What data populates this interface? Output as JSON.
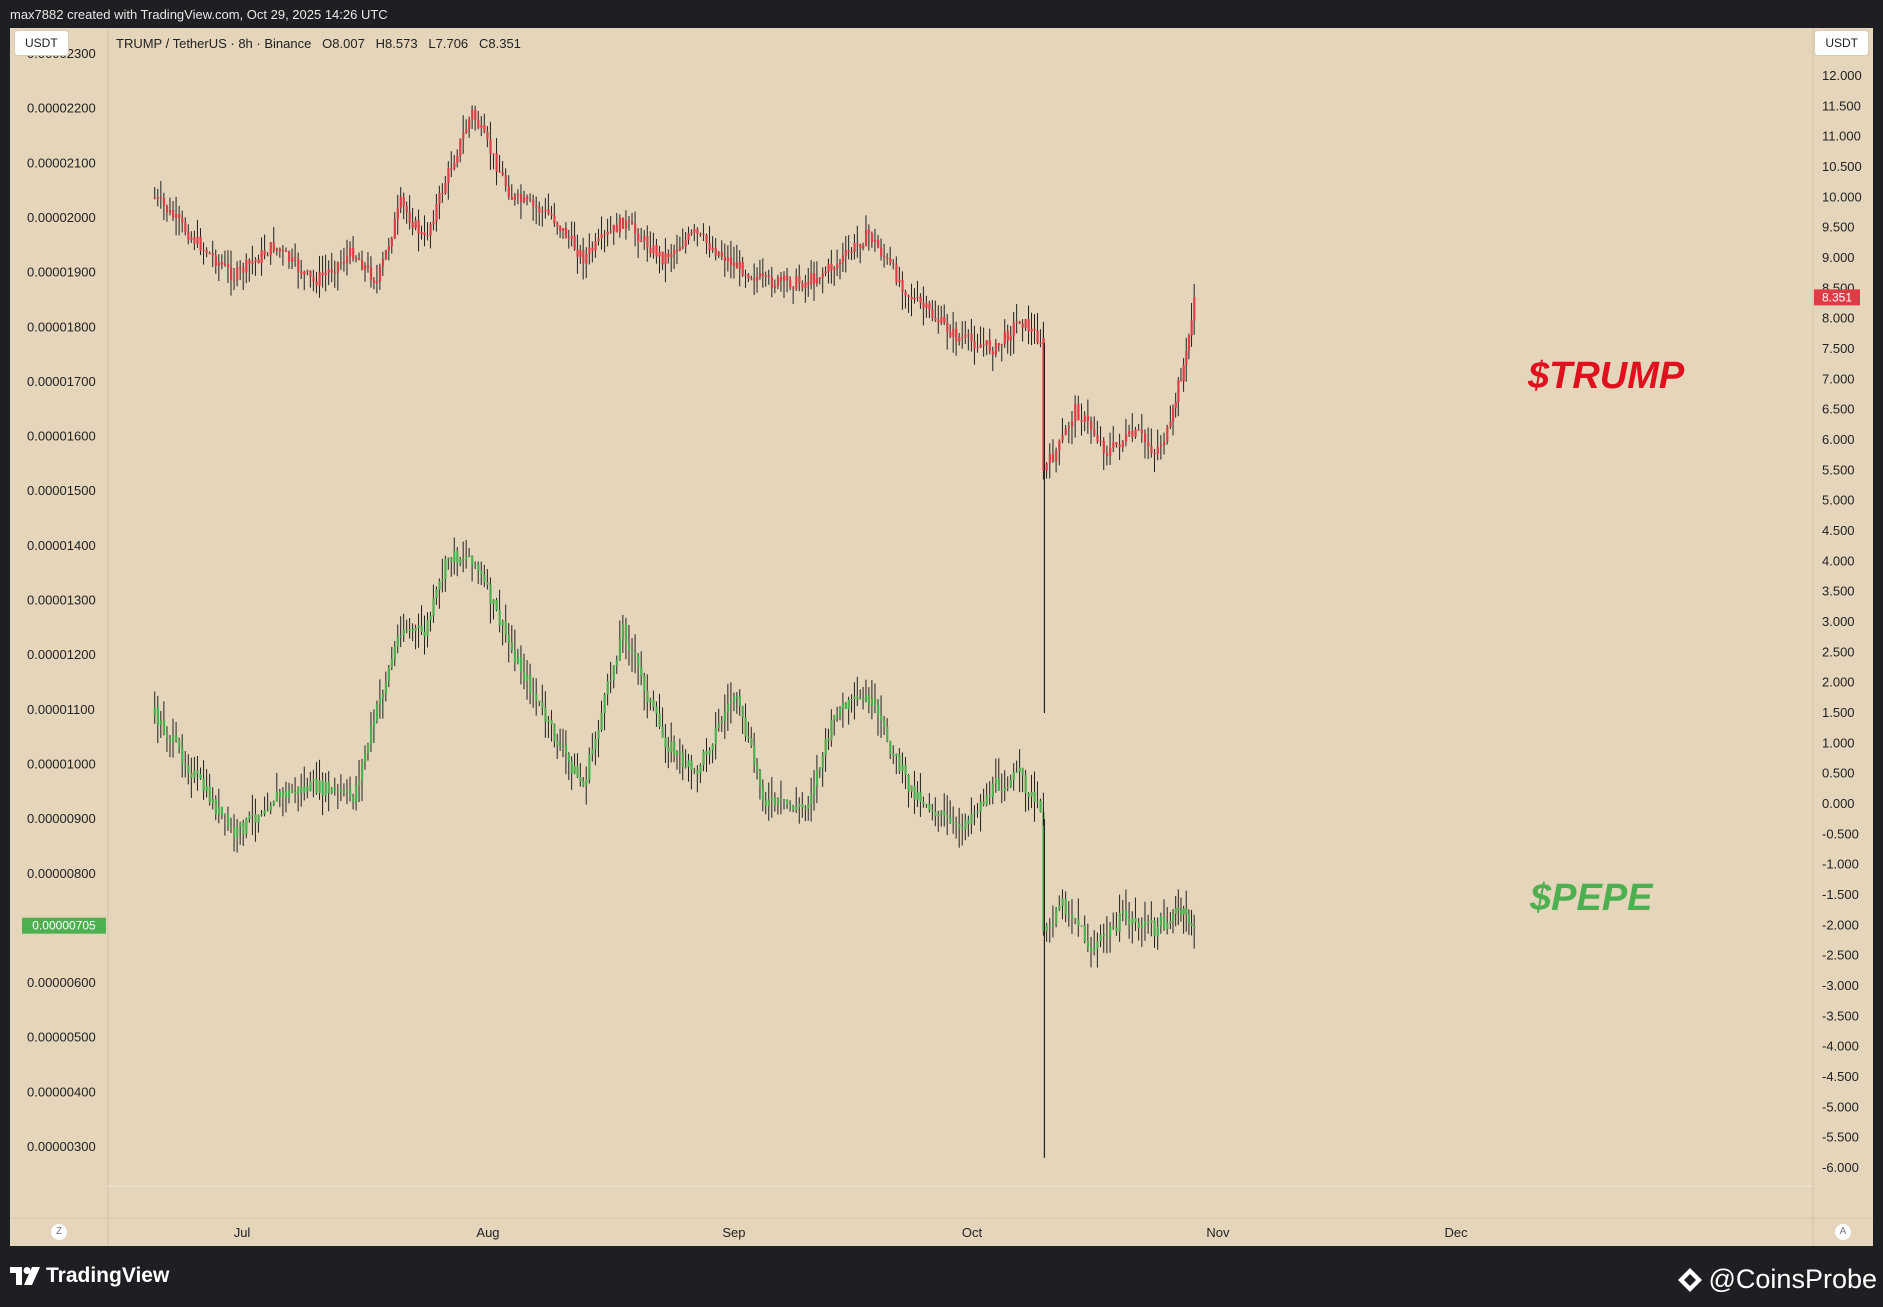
{
  "header": {
    "attribution": "max7882 created with TradingView.com, Oct 29, 2025 14:26 UTC"
  },
  "toolbar": {
    "left_unit": "USDT",
    "right_unit": "USDT",
    "legend": "TRUMP / TetherUS · 8h · Binance   O8.007   H8.573   L7.706   C8.351",
    "z_button": "Z",
    "a_button": "A"
  },
  "footer": {
    "brand": "TradingView",
    "watermark": "@CoinsProbe"
  },
  "colors": {
    "background": "#e4d5bb",
    "trump": "#e03c47",
    "pepe": "#4caf50",
    "wick": "#222222"
  },
  "chart_data": {
    "type": "line",
    "x_ticks": [
      "Jul",
      "Aug",
      "Sep",
      "Oct",
      "Nov",
      "Dec"
    ],
    "right_axis": {
      "ticks": [
        "12.000",
        "11.500",
        "11.000",
        "10.500",
        "10.000",
        "9.500",
        "9.000",
        "8.500",
        "8.000",
        "7.500",
        "7.000",
        "6.500",
        "6.000",
        "5.500",
        "5.000",
        "4.500",
        "4.000",
        "3.500",
        "3.000",
        "2.500",
        "2.000",
        "1.500",
        "1.000",
        "0.500",
        "0.000",
        "-0.500",
        "-1.000",
        "-1.500",
        "-2.000",
        "-2.500",
        "-3.000",
        "-3.500",
        "-4.000",
        "-4.500",
        "-5.000",
        "-5.500",
        "-6.000"
      ],
      "ylim": [
        -6.0,
        12.0
      ],
      "last_label": "8.351"
    },
    "left_axis": {
      "ticks": [
        "0.00002300",
        "0.00002200",
        "0.00002100",
        "0.00002000",
        "0.00001900",
        "0.00001800",
        "0.00001700",
        "0.00001600",
        "0.00001500",
        "0.00001400",
        "0.00001300",
        "0.00001200",
        "0.00001100",
        "0.00001000",
        "0.00000900",
        "0.00000800",
        "0.00000600",
        "0.00000500",
        "0.00000400",
        "0.00000300"
      ],
      "ylim": [
        3e-06,
        2.3e-05
      ],
      "last_label": "0.00000705"
    },
    "series": [
      {
        "name": "$TRUMP",
        "axis": "right",
        "x": [
          "Jun 20",
          "Jun 25",
          "Jun 30",
          "Jul 5",
          "Jul 10",
          "Jul 15",
          "Jul 18",
          "Jul 21",
          "Jul 24",
          "Jul 27",
          "Jul 30",
          "Aug 4",
          "Aug 9",
          "Aug 13",
          "Aug 18",
          "Aug 23",
          "Aug 27",
          "Sep 1",
          "Sep 5",
          "Sep 10",
          "Sep 14",
          "Sep 18",
          "Sep 23",
          "Sep 29",
          "Oct 4",
          "Oct 7",
          "Oct 10",
          "Oct 10",
          "Oct 12",
          "Oct 14",
          "Oct 16",
          "Oct 18",
          "Oct 20",
          "Oct 22",
          "Oct 24",
          "Oct 26",
          "Oct 27",
          "Oct 28",
          "Oct 29"
        ],
        "values": [
          10.0,
          9.3,
          8.7,
          9.2,
          8.6,
          9.1,
          8.6,
          9.9,
          9.3,
          10.4,
          11.4,
          10.0,
          9.7,
          9.0,
          9.6,
          9.0,
          9.4,
          8.9,
          8.6,
          8.6,
          8.9,
          9.4,
          8.4,
          7.7,
          7.5,
          8.0,
          7.6,
          5.5,
          5.9,
          6.5,
          6.2,
          5.8,
          6.0,
          6.1,
          5.8,
          6.2,
          6.9,
          7.4,
          8.351
        ]
      },
      {
        "name": "$PEPE",
        "axis": "left",
        "x": [
          "Jun 20",
          "Jun 25",
          "Jun 30",
          "Jul 5",
          "Jul 10",
          "Jul 15",
          "Jul 18",
          "Jul 21",
          "Jul 24",
          "Jul 27",
          "Jul 30",
          "Aug 4",
          "Aug 9",
          "Aug 13",
          "Aug 18",
          "Aug 23",
          "Aug 27",
          "Sep 1",
          "Sep 5",
          "Sep 10",
          "Sep 14",
          "Sep 18",
          "Sep 23",
          "Sep 29",
          "Oct 4",
          "Oct 7",
          "Oct 10",
          "Oct 10",
          "Oct 12",
          "Oct 14",
          "Oct 16",
          "Oct 18",
          "Oct 20",
          "Oct 22",
          "Oct 24",
          "Oct 26",
          "Oct 27",
          "Oct 28",
          "Oct 29"
        ],
        "values": [
          1.09e-05,
          9.8e-06,
          8.7e-06,
          9.4e-06,
          9.6e-06,
          9.4e-06,
          1.1e-05,
          1.25e-05,
          1.24e-05,
          1.38e-05,
          1.38e-05,
          1.21e-05,
          1.06e-05,
          9.6e-06,
          1.25e-05,
          1.05e-05,
          9.8e-06,
          1.13e-05,
          9.3e-06,
          9.2e-06,
          1.1e-05,
          1.12e-05,
          9.6e-06,
          8.8e-06,
          9.6e-06,
          9.8e-06,
          9e-06,
          6.8e-06,
          7.5e-06,
          7.2e-06,
          6.6e-06,
          6.9e-06,
          7.2e-06,
          7.1e-06,
          7e-06,
          7.2e-06,
          7.3e-06,
          7.2e-06,
          7.05e-06
        ]
      }
    ],
    "wick_extremes": [
      {
        "series": "$TRUMP",
        "x": "Oct 10",
        "low": 1.5
      },
      {
        "series": "$PEPE",
        "x": "Oct 10",
        "low": 2.8e-06
      }
    ],
    "annotations": [
      {
        "text": "$TRUMP",
        "color": "#e0101e"
      },
      {
        "text": "$PEPE",
        "color": "#4caf50"
      }
    ],
    "grid": false
  }
}
